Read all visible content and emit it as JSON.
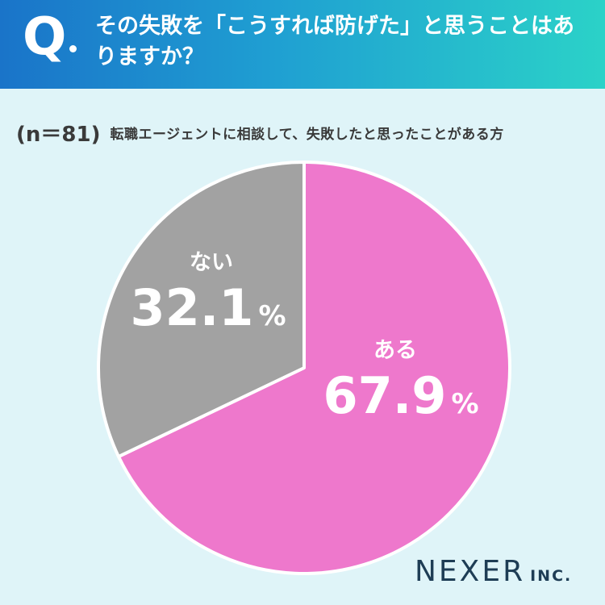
{
  "header": {
    "q_mark": "Q",
    "question": "その失敗を「こうすれば防げた」と思うことはありますか？"
  },
  "sample": {
    "n_label": "(n＝81)",
    "description": "転職エージェントに相談して、失敗したと思ったことがある方"
  },
  "colors": {
    "header_start": "#1a74c9",
    "header_end": "#2bd2c8",
    "background": "#dff4f8",
    "slice_yes": "#ee78cc",
    "slice_no": "#a2a2a2",
    "text_dark": "#3a3a3a",
    "brand": "#1e3d55"
  },
  "chart_data": {
    "type": "pie",
    "slices": [
      {
        "label": "ある",
        "value": 67.9,
        "value_text": "67.9",
        "unit": "%",
        "color": "#ee78cc"
      },
      {
        "label": "ない",
        "value": 32.1,
        "value_text": "32.1",
        "unit": "%",
        "color": "#a2a2a2"
      }
    ],
    "start": "12 o'clock",
    "direction": "clockwise"
  },
  "brand": {
    "name": "NEXER",
    "suffix": "INC."
  }
}
